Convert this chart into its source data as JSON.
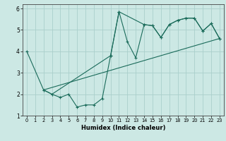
{
  "title": "",
  "xlabel": "Humidex (Indice chaleur)",
  "xlim": [
    -0.5,
    23.5
  ],
  "ylim": [
    1,
    6.2
  ],
  "yticks": [
    1,
    2,
    3,
    4,
    5,
    6
  ],
  "xticks": [
    0,
    1,
    2,
    3,
    4,
    5,
    6,
    7,
    8,
    9,
    10,
    11,
    12,
    13,
    14,
    15,
    16,
    17,
    18,
    19,
    20,
    21,
    22,
    23
  ],
  "background_color": "#cce8e4",
  "grid_color": "#aacfcb",
  "line_color": "#1a6b5a",
  "line1_x": [
    0,
    2,
    3,
    4,
    5,
    6,
    7,
    8,
    9,
    10,
    11,
    12,
    13,
    14,
    15,
    16,
    17,
    18,
    19,
    20,
    21,
    22,
    23
  ],
  "line1_y": [
    4.0,
    2.2,
    2.0,
    1.85,
    2.0,
    1.4,
    1.5,
    1.5,
    1.8,
    3.8,
    5.85,
    4.45,
    3.7,
    5.25,
    5.2,
    4.65,
    5.25,
    5.45,
    5.55,
    5.55,
    4.95,
    5.3,
    4.6
  ],
  "line2_x": [
    2,
    3,
    10,
    11,
    14,
    15,
    16,
    17,
    18,
    19,
    20,
    21,
    22,
    23
  ],
  "line2_y": [
    2.2,
    2.0,
    3.8,
    5.85,
    5.25,
    5.2,
    4.65,
    5.25,
    5.45,
    5.55,
    5.55,
    4.95,
    5.3,
    4.6
  ],
  "line3_x": [
    2,
    23
  ],
  "line3_y": [
    2.2,
    4.6
  ]
}
